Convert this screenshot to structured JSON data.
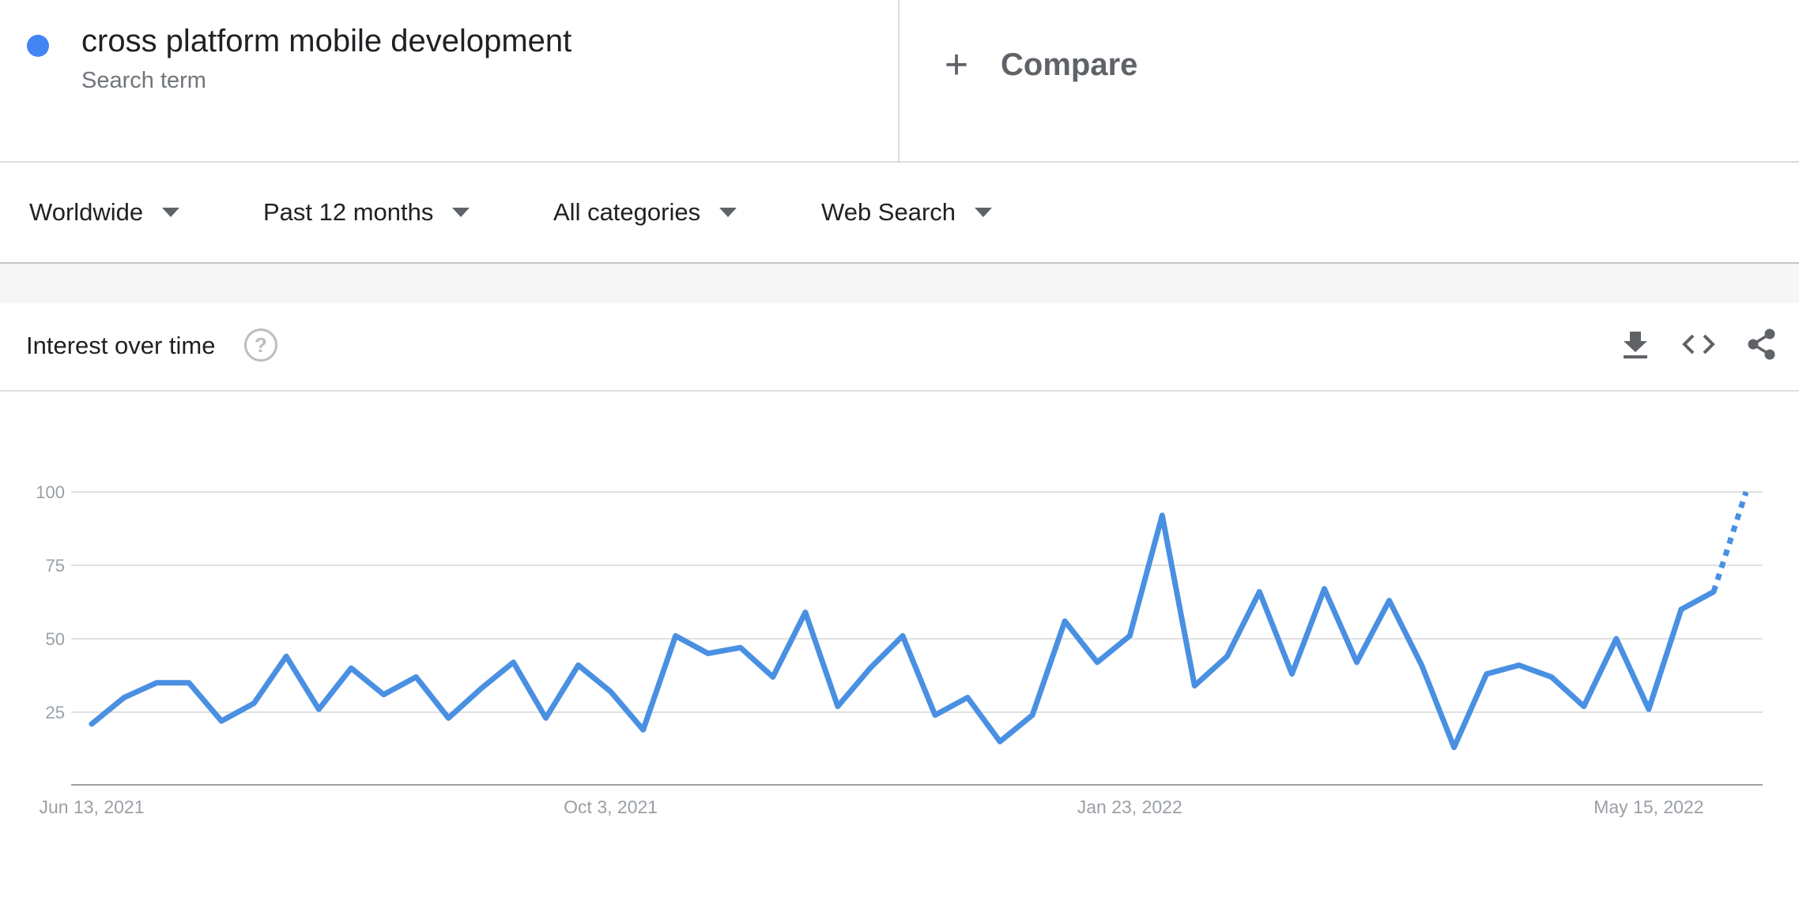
{
  "search_term": {
    "name": "cross platform mobile development",
    "subtitle": "Search term",
    "color": "#4285f4"
  },
  "compare": {
    "label": "Compare",
    "icon": "plus-icon"
  },
  "filters": [
    {
      "label": "Worldwide"
    },
    {
      "label": "Past 12 months"
    },
    {
      "label": "All categories"
    },
    {
      "label": "Web Search"
    }
  ],
  "card": {
    "title": "Interest over time",
    "icons": [
      "help-icon",
      "download-icon",
      "embed-code-icon",
      "share-icon"
    ]
  },
  "colors": {
    "line": "#4a90e2",
    "grid": "#e0e0e0",
    "axis": "#9aa0a6"
  },
  "chart_data": {
    "type": "line",
    "title": "",
    "xlabel": "",
    "ylabel": "",
    "ylim": [
      0,
      100
    ],
    "yticks": [
      25,
      50,
      75,
      100
    ],
    "grid": true,
    "x_tick_labels": [
      "Jun 13, 2021",
      "Oct 3, 2021",
      "Jan 23, 2022",
      "May 15, 2022"
    ],
    "x_tick_indices": [
      0,
      16,
      32,
      48
    ],
    "partial_last_point": true,
    "series": [
      {
        "values": [
          21,
          30,
          35,
          35,
          22,
          28,
          44,
          26,
          40,
          31,
          37,
          23,
          33,
          42,
          23,
          41,
          32,
          19,
          51,
          45,
          47,
          37,
          59,
          27,
          40,
          51,
          24,
          30,
          15,
          24,
          56,
          42,
          51,
          92,
          34,
          44,
          66,
          38,
          67,
          42,
          63,
          41,
          13,
          38,
          41,
          37,
          27,
          50,
          26,
          60,
          66,
          100
        ]
      }
    ]
  }
}
